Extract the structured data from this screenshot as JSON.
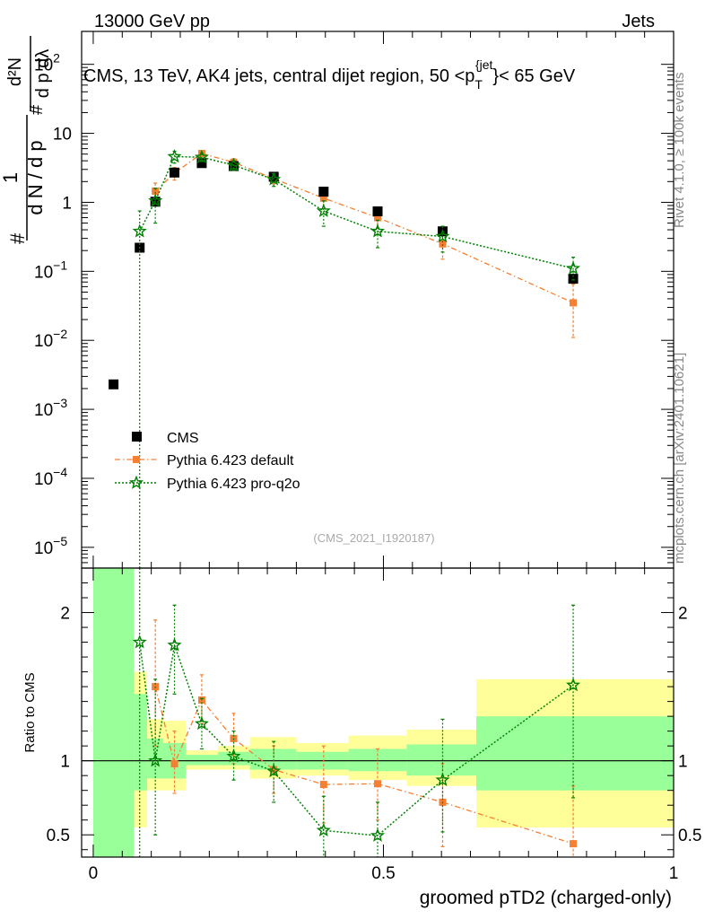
{
  "header": {
    "left": "13000 GeV pp",
    "right": "Jets"
  },
  "side_labels": {
    "rivet": "Rivet 4.1.0, ≥ 100k events",
    "mcplots": "mcplots.cern.ch [arXiv:2401.10621]"
  },
  "chart_data": [
    {
      "panel": "main",
      "type": "scatter",
      "title": "CMS, 13 TeV, AK4 jets, central dijet region, 50 <p_T^{jet}< 65 GeV",
      "title_parts": {
        "prefix": "CMS, 13 TeV, AK4 jets, central dijet region, 50 <p",
        "sub": "T",
        "sup": "{jet",
        "suffix": "}< 65 GeV"
      },
      "ylabel": "1/dN/dp_T  d²N/dp_T dλ",
      "ylabel_parts": {
        "num1": "1",
        "den1": "d N / d p",
        "num2": "d²N",
        "den2": "d p  dλ",
        "hash": "#"
      },
      "yscale": "log",
      "ylim": [
        5e-06,
        300
      ],
      "y_ticks": [
        {
          "value": 100,
          "base": "10",
          "exp": "2"
        },
        {
          "value": 10,
          "base": "10",
          "exp": ""
        },
        {
          "value": 1,
          "base": "1",
          "exp": ""
        },
        {
          "value": 0.1,
          "base": "10",
          "exp": "−1"
        },
        {
          "value": 0.01,
          "base": "10",
          "exp": "−2"
        },
        {
          "value": 0.001,
          "base": "10",
          "exp": "−3"
        },
        {
          "value": 0.0001,
          "base": "10",
          "exp": "−4"
        },
        {
          "value": 1e-05,
          "base": "10",
          "exp": "−5"
        }
      ],
      "watermark": "(CMS_2021_I1920187)",
      "legend_position": "bottom-left",
      "series": [
        {
          "name": "CMS",
          "color": "#000000",
          "marker": "square",
          "points": [
            {
              "x": 0.035,
              "y": 0.0023
            },
            {
              "x": 0.08,
              "y": 0.22
            },
            {
              "x": 0.107,
              "y": 1.02
            },
            {
              "x": 0.14,
              "y": 2.7
            },
            {
              "x": 0.187,
              "y": 3.7
            },
            {
              "x": 0.242,
              "y": 3.35
            },
            {
              "x": 0.311,
              "y": 2.35
            },
            {
              "x": 0.397,
              "y": 1.43
            },
            {
              "x": 0.49,
              "y": 0.74
            },
            {
              "x": 0.602,
              "y": 0.38
            },
            {
              "x": 0.827,
              "y": 0.078
            }
          ]
        },
        {
          "name": "Pythia 6.423 default",
          "color": "#f57f32",
          "marker": "square-small",
          "line": "dashdot",
          "points": [
            {
              "x": 0.107,
              "y": 1.45,
              "lo": 1.1,
              "hi": 1.9
            },
            {
              "x": 0.14,
              "y": 2.65,
              "lo": 2.1,
              "hi": 3.2
            },
            {
              "x": 0.187,
              "y": 5.1,
              "lo": 4.6,
              "hi": 5.6
            },
            {
              "x": 0.242,
              "y": 3.8,
              "lo": 3.3,
              "hi": 4.3
            },
            {
              "x": 0.311,
              "y": 2.2,
              "lo": 1.85,
              "hi": 2.6
            },
            {
              "x": 0.397,
              "y": 1.15,
              "lo": 0.8,
              "hi": 1.5
            },
            {
              "x": 0.49,
              "y": 0.6,
              "lo": 0.42,
              "hi": 0.8
            },
            {
              "x": 0.602,
              "y": 0.25,
              "lo": 0.15,
              "hi": 0.36
            },
            {
              "x": 0.827,
              "y": 0.035,
              "lo": 0.011,
              "hi": 0.065
            }
          ]
        },
        {
          "name": "Pythia 6.423 pro-q2o",
          "color": "#008000",
          "marker": "star",
          "line": "dotted",
          "points": [
            {
              "x": 0.08,
              "y": 0.38,
              "lo": 1e-07,
              "hi": 0.75
            },
            {
              "x": 0.107,
              "y": 1.05,
              "lo": 0.5,
              "hi": 1.6
            },
            {
              "x": 0.14,
              "y": 4.6,
              "lo": 3.7,
              "hi": 5.5
            },
            {
              "x": 0.187,
              "y": 4.5,
              "lo": 3.9,
              "hi": 5.1
            },
            {
              "x": 0.242,
              "y": 3.45,
              "lo": 2.9,
              "hi": 4.0
            },
            {
              "x": 0.311,
              "y": 2.15,
              "lo": 1.7,
              "hi": 2.6
            },
            {
              "x": 0.397,
              "y": 0.75,
              "lo": 0.45,
              "hi": 1.05
            },
            {
              "x": 0.49,
              "y": 0.38,
              "lo": 0.22,
              "hi": 0.55
            },
            {
              "x": 0.602,
              "y": 0.32,
              "lo": 0.19,
              "hi": 0.45
            },
            {
              "x": 0.827,
              "y": 0.11,
              "lo": 0.075,
              "hi": 0.16
            }
          ]
        }
      ]
    },
    {
      "panel": "ratio",
      "type": "scatter",
      "ylabel": "Ratio to CMS",
      "xlabel": "groomed pTD2 (charged-only)",
      "ylim": [
        0.35,
        2.3
      ],
      "xlim": [
        -0.02,
        1.0
      ],
      "y_ticks": [
        0.5,
        1,
        2
      ],
      "y_tick_labels": [
        "0.5",
        "1",
        "2"
      ],
      "x_ticks": [
        0,
        0.5,
        1
      ],
      "x_tick_labels": [
        "0",
        "0.5",
        "1"
      ],
      "bands": [
        {
          "x0": 0.0,
          "x1": 0.07,
          "yellow": [
            0.35,
            2.3
          ],
          "green": [
            0.35,
            2.3
          ]
        },
        {
          "x0": 0.07,
          "x1": 0.093,
          "yellow": [
            0.55,
            1.6
          ],
          "green": [
            0.8,
            1.45
          ]
        },
        {
          "x0": 0.093,
          "x1": 0.12,
          "yellow": [
            0.8,
            1.28
          ],
          "green": [
            0.88,
            1.15
          ]
        },
        {
          "x0": 0.12,
          "x1": 0.16,
          "yellow": [
            0.8,
            1.27
          ],
          "green": [
            0.88,
            1.12
          ]
        },
        {
          "x0": 0.16,
          "x1": 0.215,
          "yellow": [
            0.94,
            1.07
          ],
          "green": [
            0.97,
            1.04
          ]
        },
        {
          "x0": 0.215,
          "x1": 0.27,
          "yellow": [
            0.94,
            1.1
          ],
          "green": [
            0.97,
            1.06
          ]
        },
        {
          "x0": 0.27,
          "x1": 0.35,
          "yellow": [
            0.88,
            1.16
          ],
          "green": [
            0.94,
            1.08
          ]
        },
        {
          "x0": 0.35,
          "x1": 0.44,
          "yellow": [
            0.9,
            1.12
          ],
          "green": [
            0.94,
            1.06
          ]
        },
        {
          "x0": 0.44,
          "x1": 0.54,
          "yellow": [
            0.87,
            1.17
          ],
          "green": [
            0.93,
            1.08
          ]
        },
        {
          "x0": 0.54,
          "x1": 0.66,
          "yellow": [
            0.83,
            1.21
          ],
          "green": [
            0.9,
            1.11
          ]
        },
        {
          "x0": 0.66,
          "x1": 1.0,
          "yellow": [
            0.55,
            1.55
          ],
          "green": [
            0.8,
            1.3
          ]
        }
      ],
      "series": [
        {
          "name": "Pythia 6.423 default",
          "color": "#f57f32",
          "points": [
            {
              "x": 0.107,
              "y": 1.5,
              "lo": 1.1,
              "hi": 1.95
            },
            {
              "x": 0.14,
              "y": 0.98,
              "lo": 0.78,
              "hi": 1.2
            },
            {
              "x": 0.187,
              "y": 1.41,
              "lo": 1.25,
              "hi": 1.58
            },
            {
              "x": 0.242,
              "y": 1.15,
              "lo": 0.98,
              "hi": 1.32
            },
            {
              "x": 0.311,
              "y": 0.94,
              "lo": 0.78,
              "hi": 1.1
            },
            {
              "x": 0.397,
              "y": 0.84,
              "lo": 0.58,
              "hi": 1.1
            },
            {
              "x": 0.49,
              "y": 0.845,
              "lo": 0.6,
              "hi": 1.08
            },
            {
              "x": 0.602,
              "y": 0.72,
              "lo": 0.42,
              "hi": 0.98
            },
            {
              "x": 0.827,
              "y": 0.44,
              "lo": 0.14,
              "hi": 0.83
            }
          ]
        },
        {
          "name": "Pythia 6.423 pro-q2o",
          "color": "#008000",
          "points": [
            {
              "x": 0.08,
              "y": 1.8,
              "lo": 0.0,
              "hi": 3.6
            },
            {
              "x": 0.107,
              "y": 1.0,
              "lo": 0.5,
              "hi": 1.55
            },
            {
              "x": 0.14,
              "y": 1.78,
              "lo": 1.45,
              "hi": 2.05
            },
            {
              "x": 0.187,
              "y": 1.25,
              "lo": 1.08,
              "hi": 1.42
            },
            {
              "x": 0.242,
              "y": 1.03,
              "lo": 0.87,
              "hi": 1.2
            },
            {
              "x": 0.311,
              "y": 0.93,
              "lo": 0.72,
              "hi": 1.13
            },
            {
              "x": 0.397,
              "y": 0.53,
              "lo": 0.3,
              "hi": 0.76
            },
            {
              "x": 0.49,
              "y": 0.495,
              "lo": 0.29,
              "hi": 0.72
            },
            {
              "x": 0.602,
              "y": 0.87,
              "lo": 0.52,
              "hi": 1.28
            },
            {
              "x": 0.827,
              "y": 1.51,
              "lo": 0.75,
              "hi": 2.05
            }
          ]
        }
      ]
    }
  ]
}
